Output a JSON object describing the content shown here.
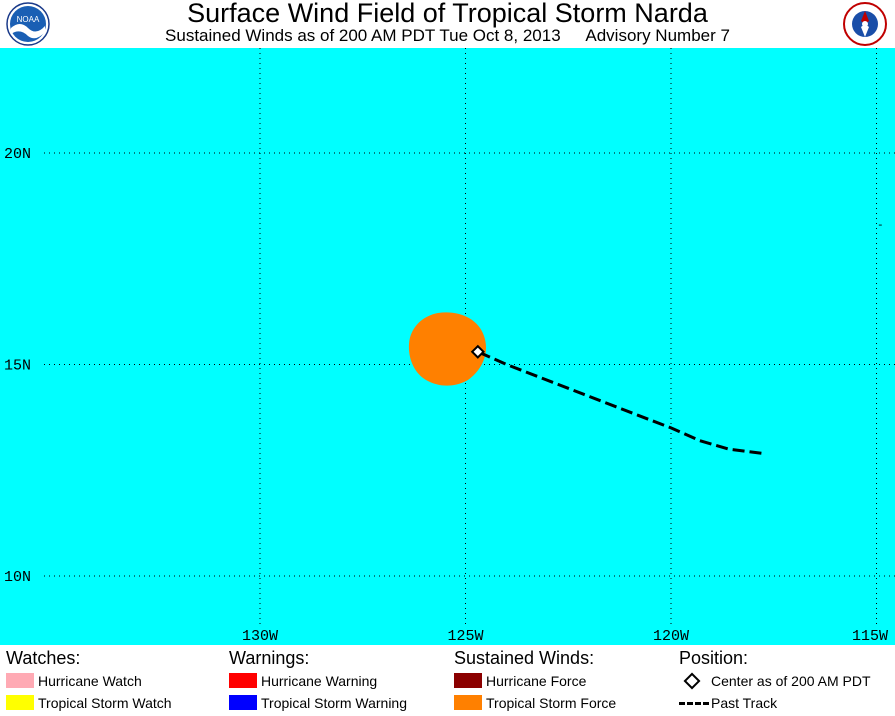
{
  "header": {
    "title": "Surface Wind Field of Tropical Storm Narda",
    "subtitle_time": "Sustained Winds as of 200 AM PDT Tue Oct 8, 2013",
    "subtitle_advisory": "Advisory Number 7",
    "left_logo_text": "NOAA",
    "right_logo": "nws-logo"
  },
  "map": {
    "ocean_color": "#00ffff",
    "wind_field_color": "#ff8000",
    "lat_labels": [
      "20N",
      "15N",
      "10N"
    ],
    "lon_labels": [
      "130W",
      "125W",
      "120W",
      "115W"
    ],
    "center": {
      "lat": 15.3,
      "lon": -124.7
    },
    "past_track": [
      {
        "lat": 12.9,
        "lon": -117.8
      },
      {
        "lat": 13.0,
        "lon": -118.6
      },
      {
        "lat": 13.2,
        "lon": -119.3
      },
      {
        "lat": 13.5,
        "lon": -120.0
      },
      {
        "lat": 13.8,
        "lon": -120.8
      },
      {
        "lat": 14.1,
        "lon": -121.6
      },
      {
        "lat": 14.4,
        "lon": -122.4
      },
      {
        "lat": 14.7,
        "lon": -123.2
      },
      {
        "lat": 15.0,
        "lon": -124.0
      },
      {
        "lat": 15.3,
        "lon": -124.7
      }
    ]
  },
  "legend": {
    "watches": {
      "heading": "Watches:",
      "items": [
        {
          "label": "Hurricane Watch",
          "color": "#ffaab4"
        },
        {
          "label": "Tropical Storm Watch",
          "color": "#ffff00"
        }
      ]
    },
    "warnings": {
      "heading": "Warnings:",
      "items": [
        {
          "label": "Hurricane Warning",
          "color": "#ff0000"
        },
        {
          "label": "Tropical Storm Warning",
          "color": "#0000ff"
        }
      ]
    },
    "winds": {
      "heading": "Sustained Winds:",
      "items": [
        {
          "label": "Hurricane Force",
          "color": "#8b0000"
        },
        {
          "label": "Tropical Storm Force",
          "color": "#ff8000"
        }
      ]
    },
    "position": {
      "heading": "Position:",
      "center_label": "Center as of 200 AM PDT",
      "track_label": "Past Track"
    }
  }
}
